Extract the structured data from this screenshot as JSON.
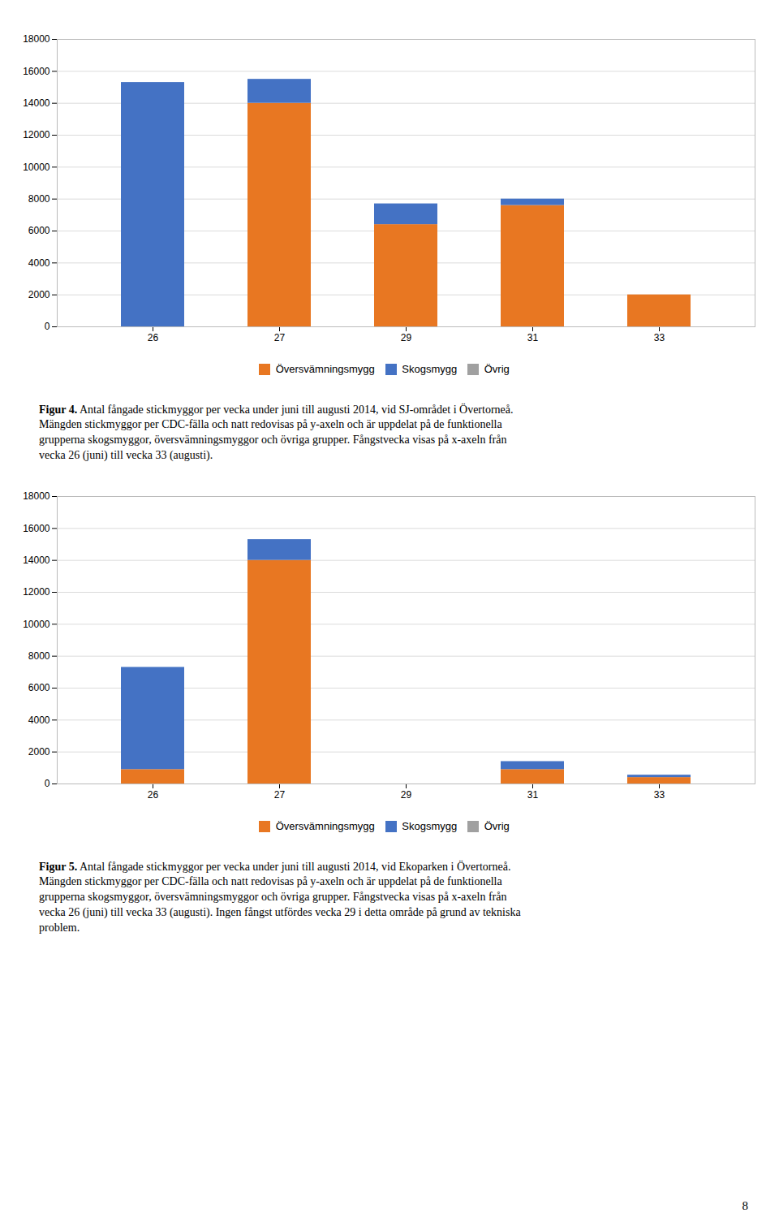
{
  "chart_data": [
    {
      "type": "bar",
      "stacked": true,
      "categories": [
        "26",
        "27",
        "29",
        "31",
        "33"
      ],
      "series": [
        {
          "name": "Översvämningsmygg",
          "color": "#E87722",
          "values": [
            0,
            14000,
            6400,
            7600,
            2000
          ]
        },
        {
          "name": "Skogsmygg",
          "color": "#4472C4",
          "values": [
            15300,
            1500,
            1300,
            400,
            0
          ]
        },
        {
          "name": "Övrig",
          "color": "#A0A0A0",
          "values": [
            0,
            0,
            0,
            0,
            0
          ]
        }
      ],
      "ylim": [
        0,
        18000
      ],
      "yticks": [
        0,
        2000,
        4000,
        6000,
        8000,
        10000,
        12000,
        14000,
        16000,
        18000
      ],
      "grid": true,
      "legend": "bottom",
      "caption": "Figur 4. Antal fångade stickmyggor per vecka under juni till augusti 2014, vid SJ-området i Övertorneå.\nMängden stickmyggor per CDC-fälla och natt redovisas på y-axeln och är uppdelat på de funktionella\ngrupperna skogsmyggor, översvämningsmyggor och övriga grupper. Fångstvecka visas på x-axeln från\nvecka 26 (juni) till vecka 33 (augusti)."
    },
    {
      "type": "bar",
      "stacked": true,
      "categories": [
        "26",
        "27",
        "29",
        "31",
        "33"
      ],
      "series": [
        {
          "name": "Översvämningsmygg",
          "color": "#E87722",
          "values": [
            900,
            14000,
            0,
            900,
            400
          ]
        },
        {
          "name": "Skogsmygg",
          "color": "#4472C4",
          "values": [
            6400,
            1300,
            0,
            500,
            150
          ]
        },
        {
          "name": "Övrig",
          "color": "#A0A0A0",
          "values": [
            0,
            0,
            0,
            0,
            0
          ]
        }
      ],
      "ylim": [
        0,
        18000
      ],
      "yticks": [
        0,
        2000,
        4000,
        6000,
        8000,
        10000,
        12000,
        14000,
        16000,
        18000
      ],
      "grid": true,
      "legend": "bottom",
      "caption": "Figur 5. Antal fångade stickmyggor per vecka under juni till augusti 2014, vid Ekoparken i Övertorneå.\nMängden stickmyggor per CDC-fälla och natt redovisas på y-axeln och är uppdelat på de funktionella\ngrupperna skogsmyggor, översvämningsmyggor och övriga grupper. Fångstvecka visas på x-axeln från\nvecka 26 (juni) till vecka 33 (augusti). Ingen fångst utfördes vecka 29 i detta område på grund av tekniska\nproblem.",
      "annotations": [
        "8"
      ]
    }
  ]
}
